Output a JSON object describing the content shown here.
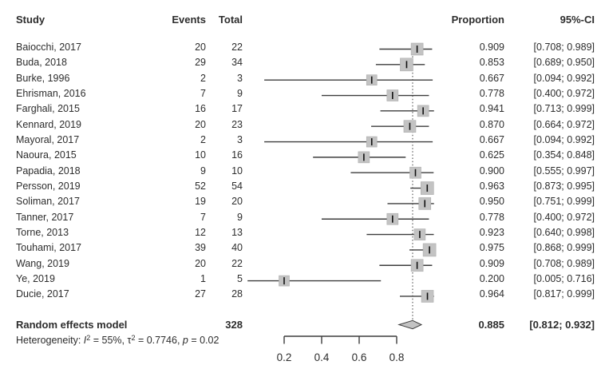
{
  "chart_data": {
    "type": "forest",
    "columns": {
      "study": "Study",
      "events": "Events",
      "total": "Total",
      "proportion": "Proportion",
      "ci": "95%-CI"
    },
    "studies": [
      {
        "study": "Baiocchi, 2017",
        "events": 20,
        "total": 22,
        "proportion": 0.909,
        "ci_low": 0.708,
        "ci_high": 0.989
      },
      {
        "study": "Buda, 2018",
        "events": 29,
        "total": 34,
        "proportion": 0.853,
        "ci_low": 0.689,
        "ci_high": 0.95
      },
      {
        "study": "Burke, 1996",
        "events": 2,
        "total": 3,
        "proportion": 0.667,
        "ci_low": 0.094,
        "ci_high": 0.992
      },
      {
        "study": "Ehrisman, 2016",
        "events": 7,
        "total": 9,
        "proportion": 0.778,
        "ci_low": 0.4,
        "ci_high": 0.972
      },
      {
        "study": "Farghali, 2015",
        "events": 16,
        "total": 17,
        "proportion": 0.941,
        "ci_low": 0.713,
        "ci_high": 0.999
      },
      {
        "study": "Kennard, 2019",
        "events": 20,
        "total": 23,
        "proportion": 0.87,
        "ci_low": 0.664,
        "ci_high": 0.972
      },
      {
        "study": "Mayoral, 2017",
        "events": 2,
        "total": 3,
        "proportion": 0.667,
        "ci_low": 0.094,
        "ci_high": 0.992
      },
      {
        "study": "Naoura, 2015",
        "events": 10,
        "total": 16,
        "proportion": 0.625,
        "ci_low": 0.354,
        "ci_high": 0.848
      },
      {
        "study": "Papadia, 2018",
        "events": 9,
        "total": 10,
        "proportion": 0.9,
        "ci_low": 0.555,
        "ci_high": 0.997
      },
      {
        "study": "Persson, 2019",
        "events": 52,
        "total": 54,
        "proportion": 0.963,
        "ci_low": 0.873,
        "ci_high": 0.995
      },
      {
        "study": "Soliman, 2017",
        "events": 19,
        "total": 20,
        "proportion": 0.95,
        "ci_low": 0.751,
        "ci_high": 0.999
      },
      {
        "study": "Tanner, 2017",
        "events": 7,
        "total": 9,
        "proportion": 0.778,
        "ci_low": 0.4,
        "ci_high": 0.972
      },
      {
        "study": "Torne, 2013",
        "events": 12,
        "total": 13,
        "proportion": 0.923,
        "ci_low": 0.64,
        "ci_high": 0.998
      },
      {
        "study": "Touhami, 2017",
        "events": 39,
        "total": 40,
        "proportion": 0.975,
        "ci_low": 0.868,
        "ci_high": 0.999
      },
      {
        "study": "Wang, 2019",
        "events": 20,
        "total": 22,
        "proportion": 0.909,
        "ci_low": 0.708,
        "ci_high": 0.989
      },
      {
        "study": "Ye, 2019",
        "events": 1,
        "total": 5,
        "proportion": 0.2,
        "ci_low": 0.005,
        "ci_high": 0.716
      },
      {
        "study": "Ducie, 2017",
        "events": 27,
        "total": 28,
        "proportion": 0.964,
        "ci_low": 0.817,
        "ci_high": 0.999
      }
    ],
    "summary": {
      "label": "Random effects model",
      "total": 328,
      "proportion": 0.885,
      "ci_low": 0.812,
      "ci_high": 0.932
    },
    "heterogeneity": {
      "segments": [
        {
          "t": "Heterogeneity: ",
          "style": "normal"
        },
        {
          "t": "I",
          "style": "italic"
        },
        {
          "t": "2",
          "style": "sup"
        },
        {
          "t": " = 55%, ",
          "style": "normal"
        },
        {
          "t": "τ",
          "style": "normal"
        },
        {
          "t": "2",
          "style": "sup"
        },
        {
          "t": " = 0.7746, ",
          "style": "normal"
        },
        {
          "t": "p",
          "style": "italic"
        },
        {
          "t": " = 0.02",
          "style": "normal"
        }
      ]
    },
    "axis": {
      "ticks": [
        0.2,
        0.4,
        0.6,
        0.8
      ],
      "tick_labels": [
        "0.2",
        "0.4",
        "0.6",
        "0.8"
      ],
      "xlim": [
        0,
        1
      ],
      "reference_line": 0.885
    },
    "colors": {
      "text": "#2d2d2d",
      "line": "#3d3d3d",
      "square_fill": "#c3c3c3",
      "square_border": "#aeaeae",
      "diamond_fill": "#c3c3c3",
      "diamond_border": "#3d3d3d"
    }
  }
}
